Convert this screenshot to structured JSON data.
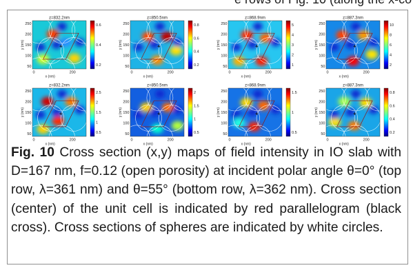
{
  "top_fragment": "e rows of Fig. 10 (along the x-co",
  "figure": {
    "panels": [
      {
        "title": "z=832.2nm",
        "cbar_ticks": [
          "0.6",
          "0.4",
          "0.2"
        ]
      },
      {
        "title": "z=850.5nm",
        "cbar_ticks": [
          "0.8",
          "0.6",
          "0.4",
          "0.2"
        ]
      },
      {
        "title": "z=868.9nm",
        "cbar_ticks": [
          "5",
          "4",
          "3",
          "2",
          "1"
        ]
      },
      {
        "title": "z=887.3nm",
        "cbar_ticks": [
          "10",
          "8",
          "6",
          "4",
          "2"
        ]
      },
      {
        "title": "z=832.2nm",
        "cbar_ticks": [
          "2.5",
          "2",
          "1.5",
          "1",
          "0.5"
        ]
      },
      {
        "title": "z=850.5nm",
        "cbar_ticks": [
          "2",
          "1.5",
          "1",
          "0.5"
        ]
      },
      {
        "title": "z=868.9nm",
        "cbar_ticks": [
          "1.5",
          "1",
          "0.5"
        ]
      },
      {
        "title": "z=887.3nm",
        "cbar_ticks": [
          "0.8",
          "0.6",
          "0.4",
          "0.2"
        ]
      }
    ],
    "y_ticks": [
      "250",
      "200",
      "150",
      "100",
      "50"
    ],
    "x_ticks": [
      "0",
      "200"
    ],
    "xlabel": "x (nm)",
    "ylabel": "y (nm)"
  },
  "caption": {
    "label": "Fig. 10",
    "text": " Cross section (x,y) maps of field intensity in IO slab with D=167 nm, f=0.12 (open porosity) at incident polar angle θ=0° (top row, λ=361 nm) and θ=55° (bottom row, λ=362 nm). Cross section (center) of the unit cell is indicated by red parallelogram (black cross). Cross sections of spheres are indicated by white circles."
  }
}
